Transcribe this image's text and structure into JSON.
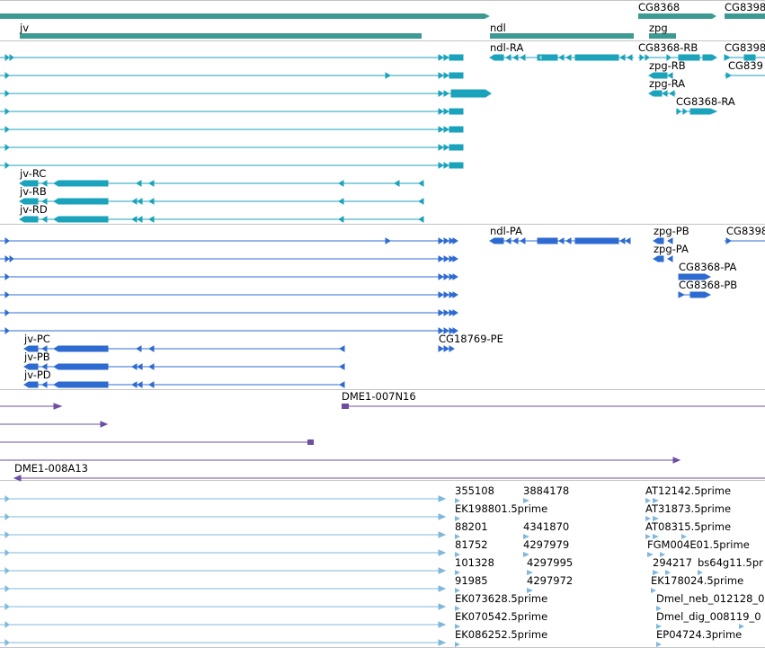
{
  "colors": {
    "gene": "#3c9a93",
    "transcript_a": "#1aa3bb",
    "transcript_b": "#2e6bd0",
    "clone": "#6d4ea3",
    "est": "#7fb8dc",
    "track_border": "#c4c4c4"
  },
  "tracks": {
    "genes": {
      "labels": [
        "jv",
        "ndl",
        "CG8368",
        "zpg",
        "CG8398"
      ]
    },
    "transcripts_r": {
      "labels": [
        "ndl-RA",
        "CG8368-RB",
        "CG8398",
        "zpg-RB",
        "CG839",
        "zpg-RA",
        "CG8368-RA",
        "jv-RC",
        "jv-RB",
        "jv-RD"
      ]
    },
    "transcripts_p": {
      "labels": [
        "ndl-PA",
        "zpg-PB",
        "CG8398",
        "zpg-PA",
        "CG8368-PA",
        "CG8368-PB",
        "jv-PC",
        "CG18769-PE",
        "jv-PB",
        "jv-PD"
      ]
    },
    "clones": {
      "labels": [
        "DME1-007N16",
        "DME1-008A13"
      ]
    },
    "ests": {
      "labels": [
        "355108",
        "3884178",
        "AT12142.5prime",
        "EK198801.5prime",
        "AT31873.5prime",
        "88201",
        "4341870",
        "AT08315.5prime",
        "81752",
        "4297979",
        "FGM004E01.5prime",
        "101328",
        "4297995",
        "294217",
        "bs64g11.5pr",
        "91985",
        "4297972",
        "EK178024.5prime",
        "EK073628.5prime",
        "Dmel_neb_012128_0",
        "EK070542.5prime",
        "Dmel_dig_008119_0",
        "EK086252.5prime",
        "EP04724.3prime"
      ]
    }
  }
}
